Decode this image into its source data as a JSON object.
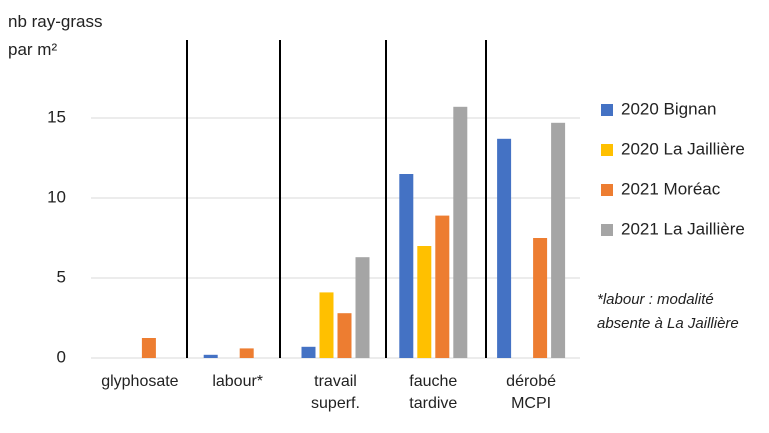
{
  "chart_data": {
    "type": "bar",
    "y_label": "nb ray-grass par m²",
    "categories": [
      "glyphosate",
      "labour*",
      "travail superf.",
      "fauche tardive",
      "dérobé MCPI"
    ],
    "series": [
      {
        "name": "2020 Bignan",
        "color": "#4472c4",
        "values": [
          null,
          0.2,
          0.7,
          11.5,
          13.7
        ]
      },
      {
        "name": "2020 La Jaillière",
        "color": "#ffc000",
        "values": [
          null,
          null,
          4.1,
          7.0,
          null
        ]
      },
      {
        "name": "2021 Moréac",
        "color": "#ed7d31",
        "values": [
          1.25,
          0.6,
          2.8,
          8.9,
          7.5
        ]
      },
      {
        "name": "2021 La Jaillière",
        "color": "#a5a5a5",
        "values": [
          null,
          null,
          6.3,
          15.7,
          14.7
        ]
      }
    ],
    "ylim": [
      0,
      20
    ],
    "yticks": [
      0,
      5,
      10,
      15
    ],
    "grid": true,
    "legend": "right",
    "annotation": "*labour : modalité absente à La Jaillière"
  }
}
